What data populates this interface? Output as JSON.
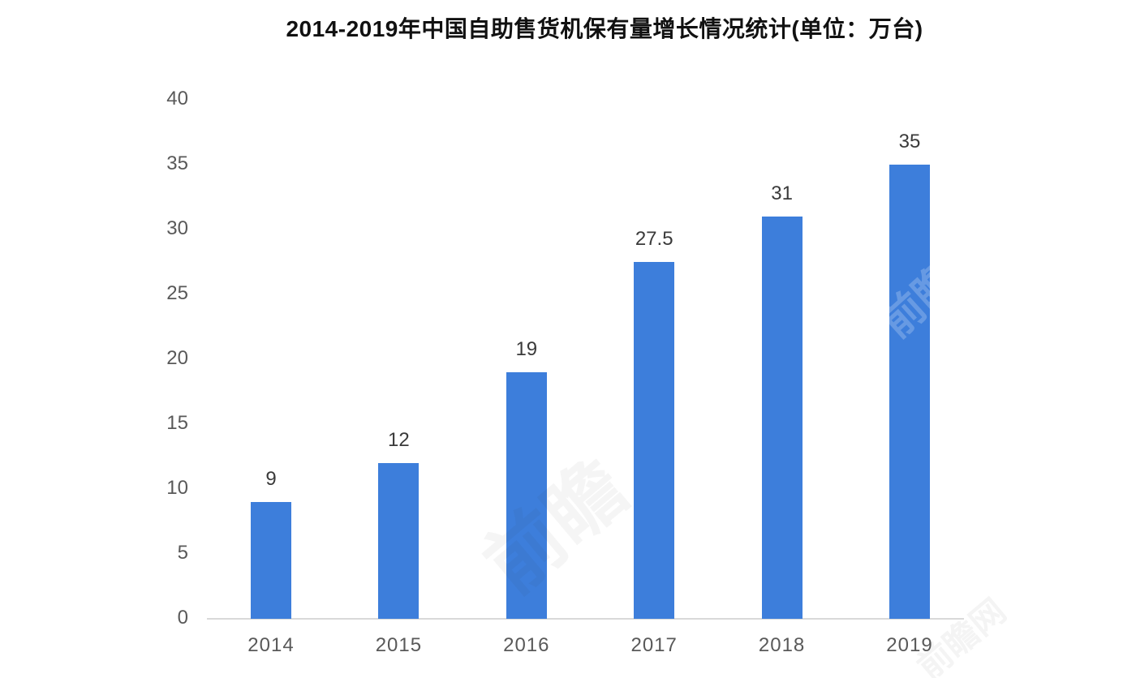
{
  "chart_data": {
    "type": "bar",
    "title": "2014-2019年中国自助售货机保有量增长情况统计(单位：万台)",
    "categories": [
      "2014",
      "2015",
      "2016",
      "2017",
      "2018",
      "2019"
    ],
    "values": [
      9,
      12,
      19,
      27.5,
      31,
      35
    ],
    "value_labels": [
      "9",
      "12",
      "19",
      "27.5",
      "31",
      "35"
    ],
    "unit": "万台",
    "xlabel": "",
    "ylabel": "",
    "y_ticks": [
      0,
      5,
      10,
      15,
      20,
      25,
      30,
      35,
      40
    ],
    "ylim": [
      0,
      40
    ],
    "grid": false,
    "legend_position": "none",
    "colors": {
      "bar": "#3d7edb",
      "axis_line": "#d9d9d9",
      "tick_label": "#595959",
      "value_label": "#3a3a3a",
      "title": "#111111"
    }
  },
  "watermark": {
    "text": "前瞻",
    "text_alt": "前瞻网"
  }
}
